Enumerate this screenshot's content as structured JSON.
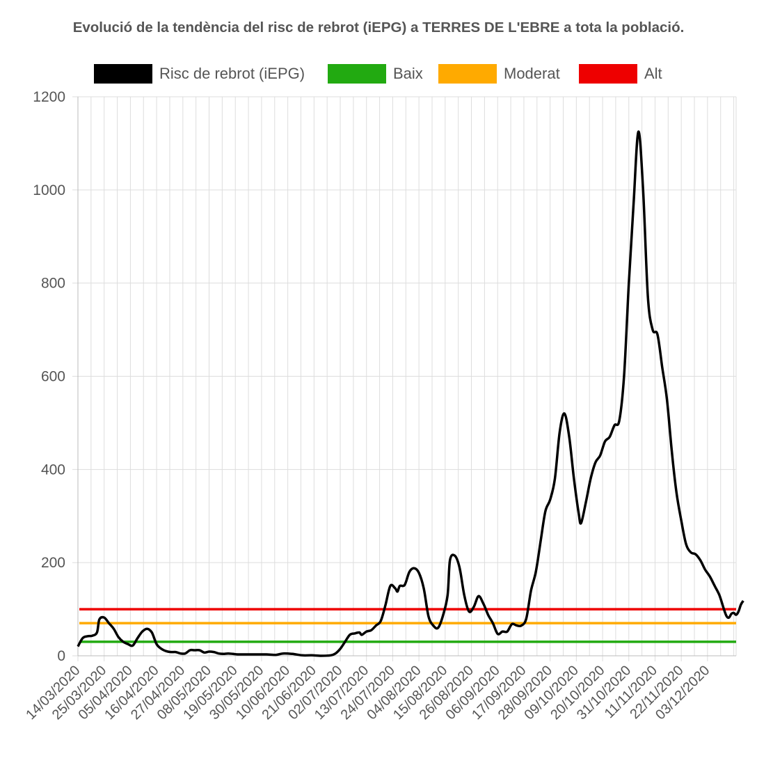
{
  "chart_data": {
    "type": "line",
    "title": "Evolució de la tendència del risc de rebrot (iEPG) a TERRES DE L'EBRE a tota la població.",
    "xlabel": "",
    "ylabel": "",
    "ylim": [
      0,
      1200
    ],
    "y_ticks": [
      0,
      200,
      400,
      600,
      800,
      1000,
      1200
    ],
    "grid": true,
    "legend_position": "top",
    "x_tick_labels": [
      "14/03/2020",
      "25/03/2020",
      "05/04/2020",
      "16/04/2020",
      "27/04/2020",
      "08/05/2020",
      "19/05/2020",
      "30/05/2020",
      "10/06/2020",
      "21/06/2020",
      "02/07/2020",
      "13/07/2020",
      "24/07/2020",
      "04/08/2020",
      "15/08/2020",
      "26/08/2020",
      "06/09/2020",
      "17/09/2020",
      "28/09/2020",
      "09/10/2020",
      "20/10/2020",
      "31/10/2020",
      "11/11/2020",
      "22/11/2020",
      "03/12/2020"
    ],
    "x_start": "2020-03-14",
    "x_end": "2020-12-15",
    "series": [
      {
        "name": "Risc de rebrot (iEPG)",
        "color": "#000000",
        "points": [
          [
            "2020-03-14",
            20
          ],
          [
            "2020-03-16",
            38
          ],
          [
            "2020-03-18",
            42
          ],
          [
            "2020-03-20",
            43
          ],
          [
            "2020-03-22",
            50
          ],
          [
            "2020-03-23",
            78
          ],
          [
            "2020-03-25",
            82
          ],
          [
            "2020-03-27",
            70
          ],
          [
            "2020-03-29",
            58
          ],
          [
            "2020-03-31",
            40
          ],
          [
            "2020-04-02",
            30
          ],
          [
            "2020-04-04",
            25
          ],
          [
            "2020-04-06",
            22
          ],
          [
            "2020-04-08",
            38
          ],
          [
            "2020-04-10",
            52
          ],
          [
            "2020-04-12",
            58
          ],
          [
            "2020-04-14",
            50
          ],
          [
            "2020-04-16",
            25
          ],
          [
            "2020-04-18",
            15
          ],
          [
            "2020-04-20",
            10
          ],
          [
            "2020-04-22",
            8
          ],
          [
            "2020-04-24",
            8
          ],
          [
            "2020-04-26",
            5
          ],
          [
            "2020-04-28",
            5
          ],
          [
            "2020-04-30",
            12
          ],
          [
            "2020-05-02",
            12
          ],
          [
            "2020-05-04",
            12
          ],
          [
            "2020-05-06",
            7
          ],
          [
            "2020-05-08",
            9
          ],
          [
            "2020-05-10",
            8
          ],
          [
            "2020-05-12",
            5
          ],
          [
            "2020-05-14",
            4
          ],
          [
            "2020-05-16",
            5
          ],
          [
            "2020-05-18",
            4
          ],
          [
            "2020-05-20",
            3
          ],
          [
            "2020-05-24",
            3
          ],
          [
            "2020-05-28",
            3
          ],
          [
            "2020-06-01",
            3
          ],
          [
            "2020-06-05",
            2
          ],
          [
            "2020-06-08",
            5
          ],
          [
            "2020-06-12",
            4
          ],
          [
            "2020-06-16",
            1
          ],
          [
            "2020-06-20",
            1
          ],
          [
            "2020-06-24",
            0
          ],
          [
            "2020-06-28",
            1
          ],
          [
            "2020-06-30",
            5
          ],
          [
            "2020-07-02",
            15
          ],
          [
            "2020-07-04",
            30
          ],
          [
            "2020-07-06",
            45
          ],
          [
            "2020-07-08",
            48
          ],
          [
            "2020-07-10",
            50
          ],
          [
            "2020-07-11",
            45
          ],
          [
            "2020-07-13",
            52
          ],
          [
            "2020-07-15",
            55
          ],
          [
            "2020-07-17",
            65
          ],
          [
            "2020-07-19",
            75
          ],
          [
            "2020-07-21",
            110
          ],
          [
            "2020-07-23",
            150
          ],
          [
            "2020-07-25",
            145
          ],
          [
            "2020-07-26",
            138
          ],
          [
            "2020-07-27",
            150
          ],
          [
            "2020-07-29",
            152
          ],
          [
            "2020-07-31",
            180
          ],
          [
            "2020-08-02",
            188
          ],
          [
            "2020-08-04",
            178
          ],
          [
            "2020-08-06",
            145
          ],
          [
            "2020-08-08",
            85
          ],
          [
            "2020-08-10",
            65
          ],
          [
            "2020-08-12",
            60
          ],
          [
            "2020-08-14",
            85
          ],
          [
            "2020-08-16",
            130
          ],
          [
            "2020-08-17",
            205
          ],
          [
            "2020-08-19",
            215
          ],
          [
            "2020-08-21",
            190
          ],
          [
            "2020-08-23",
            130
          ],
          [
            "2020-08-25",
            95
          ],
          [
            "2020-08-27",
            105
          ],
          [
            "2020-08-29",
            128
          ],
          [
            "2020-08-31",
            112
          ],
          [
            "2020-09-02",
            88
          ],
          [
            "2020-09-04",
            70
          ],
          [
            "2020-09-06",
            47
          ],
          [
            "2020-09-08",
            52
          ],
          [
            "2020-09-10",
            52
          ],
          [
            "2020-09-12",
            68
          ],
          [
            "2020-09-14",
            65
          ],
          [
            "2020-09-16",
            65
          ],
          [
            "2020-09-18",
            80
          ],
          [
            "2020-09-20",
            140
          ],
          [
            "2020-09-22",
            180
          ],
          [
            "2020-09-24",
            245
          ],
          [
            "2020-09-26",
            310
          ],
          [
            "2020-09-28",
            335
          ],
          [
            "2020-09-30",
            380
          ],
          [
            "2020-10-02",
            480
          ],
          [
            "2020-10-04",
            520
          ],
          [
            "2020-10-06",
            470
          ],
          [
            "2020-10-08",
            380
          ],
          [
            "2020-10-10",
            305
          ],
          [
            "2020-10-11",
            285
          ],
          [
            "2020-10-13",
            330
          ],
          [
            "2020-10-15",
            380
          ],
          [
            "2020-10-17",
            415
          ],
          [
            "2020-10-19",
            430
          ],
          [
            "2020-10-21",
            460
          ],
          [
            "2020-10-23",
            470
          ],
          [
            "2020-10-25",
            495
          ],
          [
            "2020-10-27",
            505
          ],
          [
            "2020-10-29",
            600
          ],
          [
            "2020-10-31",
            800
          ],
          [
            "2020-11-02",
            970
          ],
          [
            "2020-11-04",
            1125
          ],
          [
            "2020-11-06",
            1000
          ],
          [
            "2020-11-08",
            770
          ],
          [
            "2020-11-10",
            700
          ],
          [
            "2020-11-12",
            690
          ],
          [
            "2020-11-14",
            620
          ],
          [
            "2020-11-16",
            550
          ],
          [
            "2020-11-18",
            440
          ],
          [
            "2020-11-20",
            350
          ],
          [
            "2020-11-22",
            290
          ],
          [
            "2020-11-24",
            240
          ],
          [
            "2020-11-26",
            222
          ],
          [
            "2020-11-28",
            218
          ],
          [
            "2020-11-30",
            205
          ],
          [
            "2020-12-02",
            185
          ],
          [
            "2020-12-04",
            170
          ],
          [
            "2020-12-06",
            150
          ],
          [
            "2020-12-08",
            130
          ],
          [
            "2020-12-10",
            98
          ],
          [
            "2020-12-11",
            85
          ],
          [
            "2020-12-12",
            82
          ],
          [
            "2020-12-13",
            90
          ],
          [
            "2020-12-14",
            92
          ],
          [
            "2020-12-15",
            88
          ],
          [
            "2020-12-16",
            95
          ],
          [
            "2020-12-17",
            110
          ],
          [
            "2020-12-18",
            118
          ]
        ]
      },
      {
        "name": "Baix",
        "color": "#22aa11",
        "constant": 30
      },
      {
        "name": "Moderat",
        "color": "#ffaa00",
        "constant": 70
      },
      {
        "name": "Alt",
        "color": "#ee0000",
        "constant": 100
      }
    ]
  }
}
